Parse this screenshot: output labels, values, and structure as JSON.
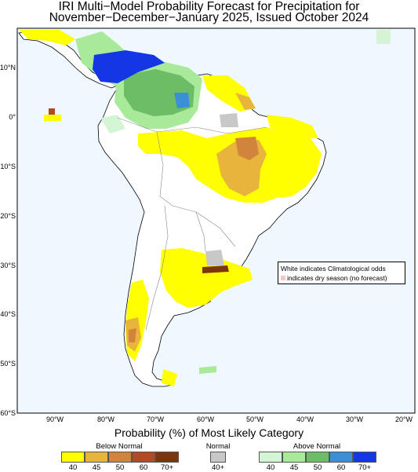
{
  "title_line1": "IRI Multi−Model Probability Forecast for Precipitation for",
  "title_line2": "November−December−January 2025, Issued October 2024",
  "lat_labels": [
    "10°N",
    "0°",
    "10°S",
    "20°S",
    "30°S",
    "40°S",
    "50°S",
    "60°S"
  ],
  "lon_labels": [
    "90°W",
    "80°W",
    "70°W",
    "60°W",
    "50°W",
    "40°W",
    "30°W",
    "20°W"
  ],
  "note": {
    "line1": "White indicates Climatological odds",
    "line2": "indicates dry season (no forecast)"
  },
  "legend": {
    "title": "Probability (%) of Most Likely Category",
    "below": {
      "label": "Below Normal",
      "ticks": [
        "40",
        "45",
        "50",
        "60",
        "70+"
      ],
      "colors": [
        "#ffff00",
        "#e8b43c",
        "#d2853a",
        "#b24b23",
        "#7b3610"
      ]
    },
    "normal": {
      "label": "Normal",
      "ticks": [
        "40+"
      ],
      "colors": [
        "#c8c8c8"
      ]
    },
    "above": {
      "label": "Above Normal",
      "ticks": [
        "40",
        "45",
        "50",
        "60",
        "70+"
      ],
      "colors": [
        "#d4f5d4",
        "#a8ea9a",
        "#6cbd66",
        "#3b8fd4",
        "#1437e6"
      ]
    }
  },
  "map_colors": {
    "ocean": "#f0f8ff",
    "land": "#ffffff",
    "dry": "#f4c6c6"
  }
}
